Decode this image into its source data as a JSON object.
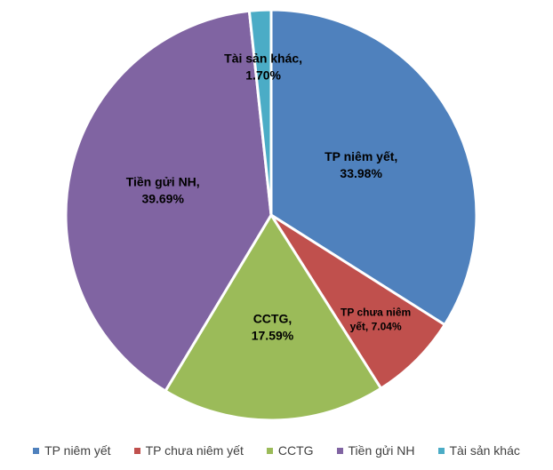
{
  "chart_data": {
    "type": "pie",
    "title": "",
    "series": [
      {
        "values": [
          33.98,
          7.04,
          17.59,
          39.69,
          1.7
        ],
        "labels": [
          "TP niêm yết",
          "TP chưa niêm yết",
          "CCTG",
          "Tiền gửi NH",
          "Tài sản khác"
        ]
      }
    ],
    "slices": [
      {
        "label": "TP niêm yết",
        "value": 33.98,
        "data_label_line1": "TP niêm yết,",
        "data_label_line2": "33.98%",
        "color": "#4F81BD"
      },
      {
        "label": "TP chưa niêm yết",
        "value": 7.04,
        "data_label_line1": "TP chưa niêm",
        "data_label_line2": "yết, 7.04%",
        "color": "#C0504D"
      },
      {
        "label": "CCTG",
        "value": 17.59,
        "data_label_line1": "CCTG,",
        "data_label_line2": "17.59%",
        "color": "#9BBB59"
      },
      {
        "label": "Tiền gửi NH",
        "value": 39.69,
        "data_label_line1": "Tiền gửi NH,",
        "data_label_line2": "39.69%",
        "color": "#8064A2"
      },
      {
        "label": "Tài sản khác",
        "value": 1.7,
        "data_label_line1": "Tài sản khác,",
        "data_label_line2": "1.70%",
        "color": "#4BACC6"
      }
    ],
    "start_angle_deg": 0,
    "direction": "clockwise",
    "legend_position": "bottom"
  },
  "legend": {
    "items": [
      {
        "label": "TP niêm yết",
        "color": "#4F81BD"
      },
      {
        "label": "TP chưa niêm yết",
        "color": "#C0504D"
      },
      {
        "label": "CCTG",
        "color": "#9BBB59"
      },
      {
        "label": "Tiền gửi NH",
        "color": "#8064A2"
      },
      {
        "label": "Tài sản khác",
        "color": "#4BACC6"
      }
    ]
  }
}
